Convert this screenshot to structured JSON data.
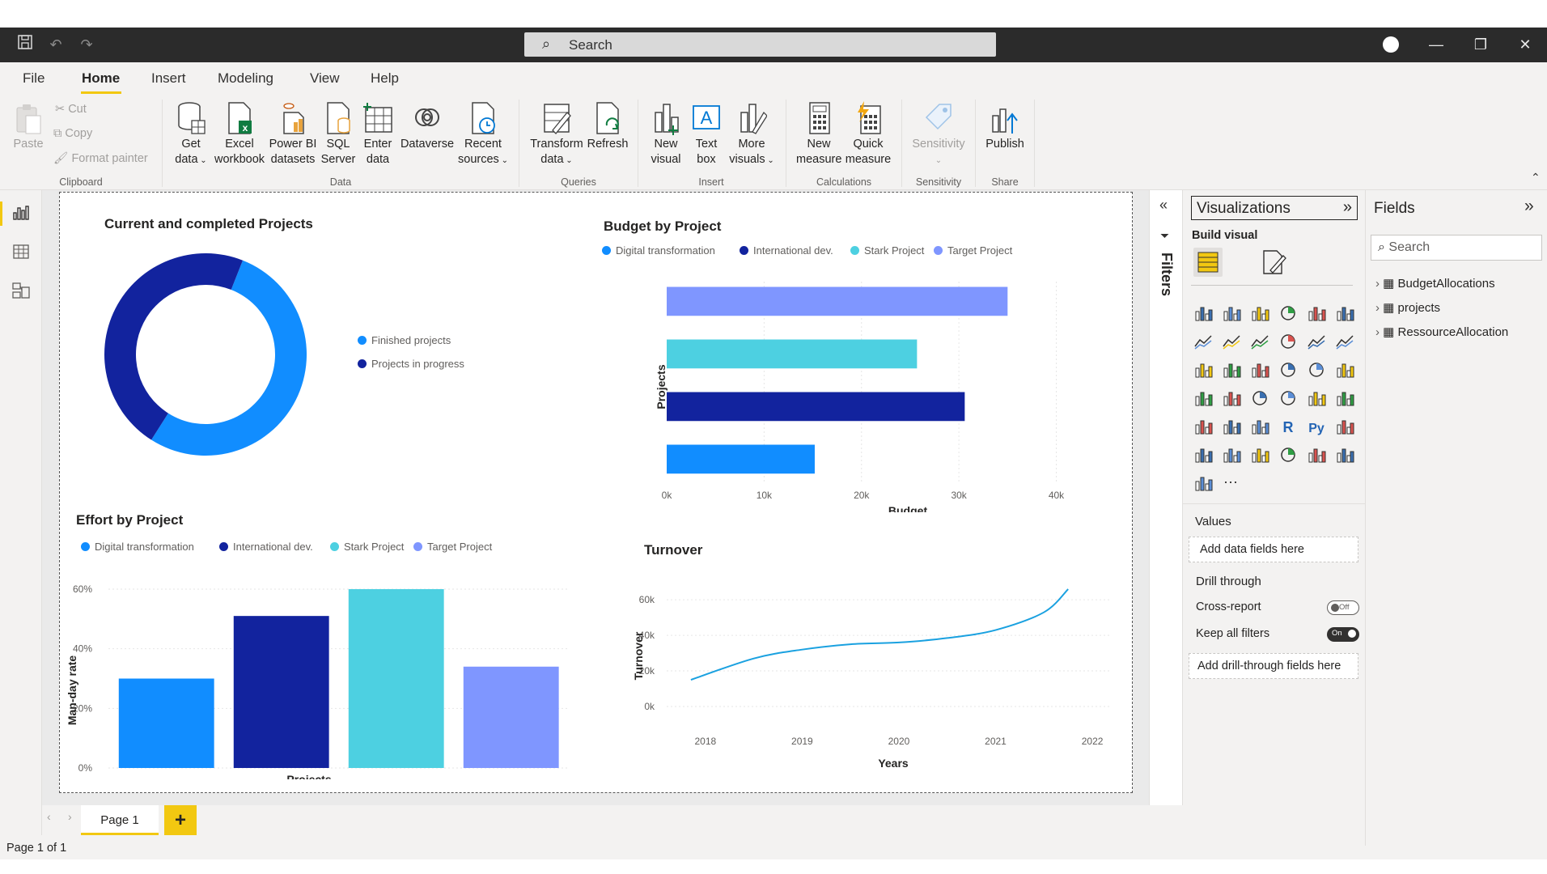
{
  "titlebar": {
    "search_placeholder": "Search",
    "icons": [
      "save-icon",
      "undo-icon",
      "redo-icon",
      "search-icon",
      "minimize-icon",
      "restore-icon",
      "close-icon"
    ]
  },
  "menu": {
    "items": [
      "File",
      "Home",
      "Insert",
      "Modeling",
      "View",
      "Help"
    ],
    "active": "Home"
  },
  "ribbon": {
    "clipboard": {
      "paste": "Paste",
      "cut": "Cut",
      "copy": "Copy",
      "format_painter": "Format painter",
      "group": "Clipboard"
    },
    "data": {
      "get_data": [
        "Get",
        "data"
      ],
      "excel": [
        "Excel",
        "workbook"
      ],
      "pbi_datasets": [
        "Power BI",
        "datasets"
      ],
      "sql": [
        "SQL",
        "Server"
      ],
      "enter_data": [
        "Enter",
        "data"
      ],
      "dataverse": "Dataverse",
      "recent": [
        "Recent",
        "sources"
      ],
      "group": "Data"
    },
    "queries": {
      "transform": [
        "Transform",
        "data"
      ],
      "refresh": "Refresh",
      "group": "Queries"
    },
    "insert": {
      "new_visual": [
        "New",
        "visual"
      ],
      "text_box": [
        "Text",
        "box"
      ],
      "more_visuals": [
        "More",
        "visuals"
      ],
      "group": "Insert"
    },
    "calculations": {
      "new_measure": [
        "New",
        "measure"
      ],
      "quick_measure": [
        "Quick",
        "measure"
      ],
      "group": "Calculations"
    },
    "sensitivity": {
      "label": "Sensitivity",
      "group": "Sensitivity"
    },
    "share": {
      "publish": "Publish",
      "group": "Share"
    }
  },
  "colors": {
    "digital": "#118dff",
    "international": "#12239e",
    "stark": "#4dd0e1",
    "target": "#7f96ff",
    "accent": "#f2c811",
    "turnover_line": "#1aa1e0"
  },
  "visuals": {
    "donut": {
      "title": "Current and completed Projects",
      "legend": [
        "Finished projects",
        "Projects in progress"
      ]
    },
    "budget": {
      "title": "Budget by Project"
    },
    "effort": {
      "title": "Effort by Project"
    },
    "turnover": {
      "title": "Turnover"
    },
    "project_legend": [
      "Digital transformation",
      "International dev.",
      "Stark Project",
      "Target Project"
    ]
  },
  "chart_data": [
    {
      "type": "pie",
      "title": "Current and completed Projects",
      "categories": [
        "Finished projects",
        "Projects in progress"
      ],
      "values": [
        53,
        47
      ]
    },
    {
      "type": "bar",
      "orientation": "horizontal",
      "title": "Budget by Project",
      "xlabel": "Budget",
      "ylabel": "Projects",
      "categories": [
        "Target Project",
        "Stark Project",
        "International dev.",
        "Digital transformation"
      ],
      "values": [
        35000,
        25700,
        30600,
        15200
      ],
      "xlim": [
        0,
        40000
      ],
      "xticks": [
        "0k",
        "10k",
        "20k",
        "30k",
        "40k"
      ]
    },
    {
      "type": "bar",
      "title": "Effort by Project",
      "xlabel": "Projects",
      "ylabel": "Man-day rate",
      "categories": [
        "Digital transformation",
        "International dev.",
        "Stark Project",
        "Target Project"
      ],
      "values": [
        30,
        51,
        60,
        34
      ],
      "ylim": [
        0,
        60
      ],
      "yticks": [
        "0%",
        "20%",
        "40%",
        "60%"
      ]
    },
    {
      "type": "line",
      "title": "Turnover",
      "xlabel": "Years",
      "ylabel": "Turnover",
      "x": [
        2017.85,
        2018.5,
        2019,
        2019.5,
        2020,
        2020.5,
        2021,
        2021.5,
        2021.75
      ],
      "y": [
        15000,
        27000,
        32000,
        35000,
        36000,
        38500,
        43000,
        53000,
        66000
      ],
      "xticks": [
        "2018",
        "2019",
        "2020",
        "2021",
        "2022"
      ],
      "yticks": [
        "0k",
        "20k",
        "40k",
        "60k"
      ],
      "ylim": [
        0,
        66000
      ]
    }
  ],
  "pages": {
    "tab": "Page 1",
    "add": "+",
    "status": "Page 1 of 1"
  },
  "filters": {
    "label": "Filters"
  },
  "viz_pane": {
    "title": "Visualizations",
    "build_visual": "Build visual",
    "values_label": "Values",
    "values_well": "Add data fields here",
    "drill_through": "Drill through",
    "cross_report": "Cross-report",
    "cross_report_state": "Off",
    "keep_filters": "Keep all filters",
    "keep_filters_state": "On",
    "drill_well": "Add drill-through fields here",
    "more": "···"
  },
  "fields_pane": {
    "title": "Fields",
    "search_placeholder": "Search",
    "tables": [
      "BudgetAllocations",
      "projects",
      "RessourceAllocation"
    ]
  }
}
